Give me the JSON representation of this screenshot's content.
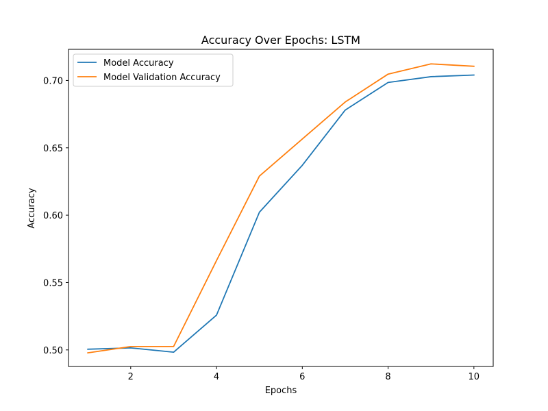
{
  "chart_data": {
    "type": "line",
    "title": "Accuracy Over Epochs: LSTM",
    "xlabel": "Epochs",
    "ylabel": "Accuracy",
    "x": [
      1,
      2,
      3,
      4,
      5,
      6,
      7,
      8,
      9,
      10
    ],
    "series": [
      {
        "name": "Model Accuracy",
        "color": "#1f77b4",
        "values": [
          0.5005,
          0.5015,
          0.4983,
          0.5258,
          0.6022,
          0.637,
          0.678,
          0.6985,
          0.7028,
          0.704
        ]
      },
      {
        "name": "Model Validation Accuracy",
        "color": "#ff7f0e",
        "values": [
          0.4978,
          0.5025,
          0.5025,
          0.5663,
          0.629,
          0.6565,
          0.684,
          0.7047,
          0.7123,
          0.7105
        ]
      }
    ],
    "xlim": [
      0.55,
      10.45
    ],
    "ylim": [
      0.4877,
      0.7231
    ],
    "xticks": [
      2,
      4,
      6,
      8,
      10
    ],
    "yticks": [
      0.5,
      0.55,
      0.6,
      0.65,
      0.7
    ],
    "ytick_labels": [
      "0.50",
      "0.55",
      "0.60",
      "0.65",
      "0.70"
    ],
    "grid": false,
    "legend_position": "top-left"
  }
}
